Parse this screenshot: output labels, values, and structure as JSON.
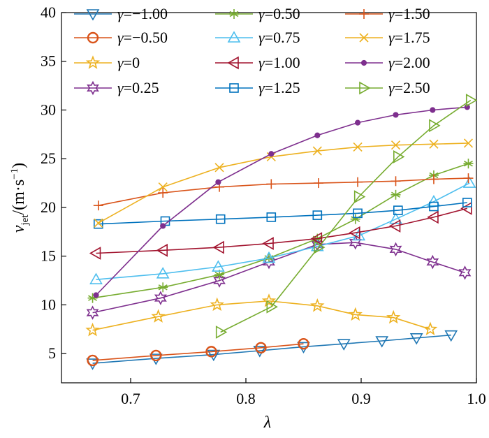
{
  "chart_data": {
    "type": "line",
    "title": "",
    "xlabel": "λ",
    "ylabel_main": "v",
    "ylabel_sub": "jet",
    "ylabel_unit_pre": "/(m·s",
    "ylabel_unit_sup": "−1",
    "ylabel_unit_post": ")",
    "xlim": [
      0.64,
      1.0
    ],
    "ylim": [
      2.0,
      40.0
    ],
    "xticks": [
      0.7,
      0.8,
      0.9,
      1.0
    ],
    "xtick_labels": [
      "0.7",
      "0.8",
      "0.9",
      "1.0"
    ],
    "yticks": [
      5,
      10,
      15,
      20,
      25,
      30,
      35,
      40
    ],
    "ytick_labels": [
      "5",
      "10",
      "15",
      "20",
      "25",
      "30",
      "35",
      "40"
    ],
    "grid": false,
    "legend_position": "top",
    "series": [
      {
        "name": "γ=−1.00",
        "color": "#1f77b4",
        "marker": "triangle-down",
        "x": [
          0.667,
          0.722,
          0.772,
          0.812,
          0.85,
          0.885,
          0.918,
          0.948,
          0.978
        ],
        "y": [
          4.0,
          4.5,
          4.9,
          5.3,
          5.7,
          6.0,
          6.3,
          6.6,
          6.9
        ]
      },
      {
        "name": "γ=−0.50",
        "color": "#d95319",
        "marker": "circle",
        "x": [
          0.667,
          0.722,
          0.77,
          0.813,
          0.85
        ],
        "y": [
          4.3,
          4.8,
          5.2,
          5.6,
          6.0
        ]
      },
      {
        "name": "γ=0",
        "color": "#edb120",
        "marker": "star",
        "x": [
          0.667,
          0.724,
          0.775,
          0.82,
          0.862,
          0.895,
          0.928,
          0.96
        ],
        "y": [
          7.4,
          8.8,
          10.0,
          10.4,
          9.9,
          9.0,
          8.7,
          7.5
        ]
      },
      {
        "name": "γ=0.25",
        "color": "#7e2f8e",
        "marker": "hexagram",
        "x": [
          0.667,
          0.726,
          0.777,
          0.82,
          0.862,
          0.895,
          0.93,
          0.962,
          0.99
        ],
        "y": [
          9.2,
          10.7,
          12.5,
          14.4,
          16.2,
          16.4,
          15.7,
          14.4,
          13.3
        ]
      },
      {
        "name": "γ=0.50",
        "color": "#77ac30",
        "marker": "asterisk",
        "x": [
          0.667,
          0.728,
          0.777,
          0.82,
          0.862,
          0.895,
          0.93,
          0.963,
          0.993
        ],
        "y": [
          10.7,
          11.8,
          13.1,
          14.8,
          16.8,
          18.8,
          21.3,
          23.3,
          24.5
        ]
      },
      {
        "name": "γ=0.75",
        "color": "#4dbeee",
        "marker": "triangle-up",
        "x": [
          0.67,
          0.728,
          0.776,
          0.82,
          0.862,
          0.898,
          0.93,
          0.963,
          0.994
        ],
        "y": [
          12.6,
          13.2,
          13.9,
          14.8,
          16.0,
          17.1,
          18.8,
          20.6,
          22.5
        ]
      },
      {
        "name": "γ=1.00",
        "color": "#a2142f",
        "marker": "triangle-left",
        "x": [
          0.67,
          0.728,
          0.777,
          0.82,
          0.862,
          0.895,
          0.93,
          0.963,
          0.992
        ],
        "y": [
          15.3,
          15.6,
          15.9,
          16.3,
          16.8,
          17.4,
          18.1,
          19.0,
          19.9
        ]
      },
      {
        "name": "γ=1.25",
        "color": "#0072bd",
        "marker": "square",
        "x": [
          0.672,
          0.73,
          0.778,
          0.822,
          0.862,
          0.897,
          0.932,
          0.963,
          0.992
        ],
        "y": [
          18.3,
          18.6,
          18.8,
          19.0,
          19.2,
          19.4,
          19.7,
          20.1,
          20.5
        ]
      },
      {
        "name": "γ=1.50",
        "color": "#d95319",
        "marker": "plus",
        "x": [
          0.672,
          0.728,
          0.777,
          0.822,
          0.863,
          0.897,
          0.93,
          0.963,
          0.993
        ],
        "y": [
          20.2,
          21.5,
          22.1,
          22.4,
          22.5,
          22.6,
          22.7,
          22.9,
          23.0
        ]
      },
      {
        "name": "γ=1.75",
        "color": "#edb120",
        "marker": "cross",
        "x": [
          0.672,
          0.728,
          0.777,
          0.822,
          0.862,
          0.897,
          0.93,
          0.963,
          0.993
        ],
        "y": [
          18.4,
          22.1,
          24.1,
          25.2,
          25.8,
          26.2,
          26.4,
          26.5,
          26.6
        ]
      },
      {
        "name": "γ=2.00",
        "color": "#7e2f8e",
        "marker": "dot",
        "x": [
          0.67,
          0.728,
          0.776,
          0.822,
          0.862,
          0.897,
          0.93,
          0.962,
          0.992
        ],
        "y": [
          11.0,
          18.1,
          22.6,
          25.5,
          27.4,
          28.7,
          29.5,
          30.0,
          30.3
        ]
      },
      {
        "name": "γ=2.50",
        "color": "#77ac30",
        "marker": "triangle-right",
        "x": [
          0.778,
          0.822,
          0.863,
          0.898,
          0.932,
          0.963,
          0.995
        ],
        "y": [
          7.2,
          9.8,
          15.9,
          21.1,
          25.2,
          28.4,
          31.0
        ]
      }
    ],
    "legend_columns": [
      [
        0,
        1,
        2,
        3
      ],
      [
        4,
        5,
        6,
        7
      ],
      [
        8,
        9,
        10,
        11
      ]
    ]
  }
}
